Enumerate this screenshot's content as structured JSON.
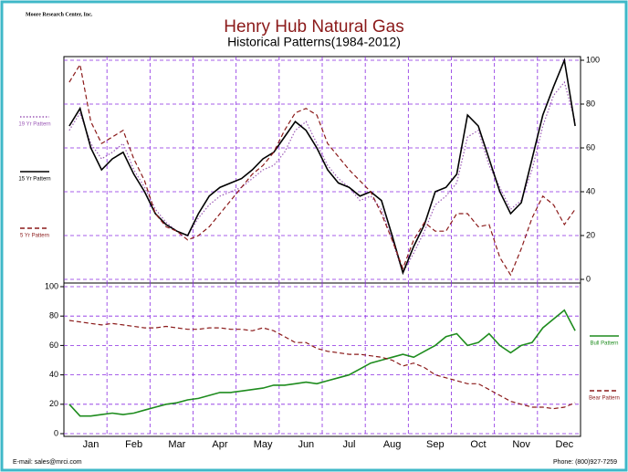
{
  "logo": "Moore Research Center, Inc.",
  "footer": {
    "email": "E-mail: sales@mrci.com",
    "phone": "Phone: (800)927-7259"
  },
  "chart_data": [
    {
      "type": "line",
      "title": "Henry Hub Natural Gas",
      "subtitle": "Historical Patterns(1984-2012)",
      "ylim": [
        0,
        100
      ],
      "yticks": [
        0,
        20,
        40,
        60,
        80,
        100
      ],
      "yaxis": "right",
      "grid": true,
      "legend": "left",
      "series": [
        {
          "name": "19 Yr Pattern",
          "color": "#9b59b6",
          "style": "dotted",
          "values": [
            68,
            76,
            62,
            55,
            58,
            62,
            50,
            42,
            32,
            26,
            22,
            20,
            28,
            34,
            38,
            40,
            42,
            46,
            50,
            52,
            58,
            68,
            72,
            62,
            52,
            46,
            42,
            36,
            38,
            32,
            18,
            3,
            12,
            22,
            34,
            38,
            44,
            65,
            68,
            52,
            42,
            32,
            36,
            50,
            70,
            84,
            90,
            72
          ]
        },
        {
          "name": "15 Yr Pattern",
          "color": "#000000",
          "style": "solid",
          "values": [
            70,
            78,
            60,
            50,
            55,
            58,
            48,
            40,
            30,
            25,
            22,
            20,
            30,
            38,
            42,
            44,
            46,
            50,
            55,
            58,
            65,
            72,
            68,
            60,
            50,
            44,
            42,
            38,
            40,
            36,
            20,
            3,
            15,
            25,
            40,
            42,
            48,
            75,
            70,
            55,
            40,
            30,
            35,
            55,
            75,
            88,
            100,
            70
          ]
        },
        {
          "name": "5 Yr Pattern",
          "color": "#8b1a1a",
          "style": "dashed",
          "values": [
            90,
            98,
            72,
            62,
            65,
            68,
            55,
            45,
            30,
            24,
            22,
            18,
            20,
            24,
            30,
            36,
            42,
            48,
            52,
            58,
            68,
            76,
            78,
            75,
            62,
            56,
            50,
            45,
            40,
            30,
            18,
            5,
            18,
            26,
            22,
            22,
            30,
            30,
            24,
            25,
            10,
            2,
            14,
            28,
            38,
            34,
            25,
            32
          ]
        }
      ]
    },
    {
      "type": "line",
      "ylim": [
        0,
        100
      ],
      "yticks": [
        0,
        20,
        40,
        60,
        80,
        100
      ],
      "yaxis": "left",
      "grid": true,
      "legend": "right",
      "categories": [
        null,
        null,
        "Jan",
        null,
        null,
        null,
        "Feb",
        null,
        null,
        null,
        "Mar",
        null,
        null,
        null,
        "Apr",
        null,
        null,
        null,
        "May",
        null,
        null,
        null,
        "Jun",
        null,
        null,
        null,
        "Jul",
        null,
        null,
        null,
        "Aug",
        null,
        null,
        null,
        "Sep",
        null,
        null,
        null,
        "Oct",
        null,
        null,
        null,
        "Nov",
        null,
        null,
        null,
        "Dec",
        null
      ],
      "series": [
        {
          "name": "Bull Pattern",
          "color": "#1e8c1e",
          "style": "solid",
          "values": [
            20,
            12,
            12,
            13,
            14,
            13,
            14,
            16,
            18,
            20,
            21,
            23,
            24,
            26,
            28,
            28,
            29,
            30,
            31,
            33,
            33,
            34,
            35,
            34,
            36,
            38,
            40,
            44,
            48,
            50,
            52,
            54,
            52,
            56,
            60,
            66,
            68,
            60,
            62,
            68,
            60,
            55,
            60,
            62,
            72,
            78,
            84,
            70
          ]
        },
        {
          "name": "Bear Pattern",
          "color": "#8b1a1a",
          "style": "dashed",
          "values": [
            77,
            76,
            75,
            74,
            75,
            74,
            73,
            72,
            72,
            73,
            72,
            71,
            71,
            72,
            72,
            71,
            71,
            70,
            72,
            70,
            66,
            62,
            62,
            58,
            56,
            55,
            54,
            54,
            53,
            52,
            50,
            46,
            48,
            45,
            40,
            38,
            36,
            34,
            34,
            30,
            26,
            22,
            20,
            18,
            18,
            17,
            18,
            21
          ]
        }
      ]
    }
  ]
}
